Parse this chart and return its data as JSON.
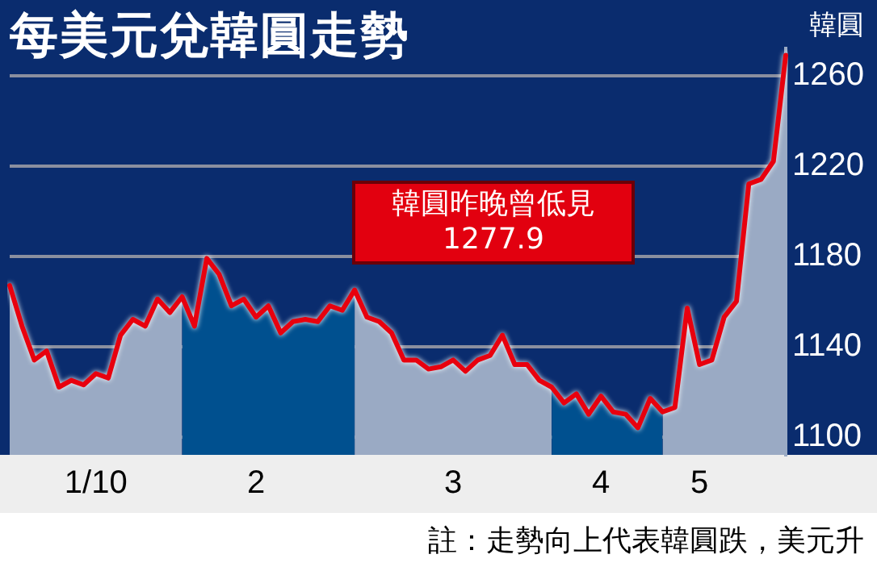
{
  "chart_data": {
    "type": "area",
    "title": "每美元兌韓圓走勢",
    "ylabel": "韓圓",
    "annotations": [
      "韓圓昨晚曾低見\n1277.9",
      "註：走勢向上代表韓圓跌，美元升"
    ],
    "categories": [
      null,
      null,
      null,
      null,
      null,
      null,
      null,
      "1/10",
      null,
      null,
      null,
      null,
      null,
      null,
      null,
      null,
      null,
      null,
      null,
      null,
      "2",
      null,
      null,
      null,
      null,
      null,
      null,
      null,
      null,
      null,
      null,
      null,
      null,
      null,
      null,
      null,
      "3",
      null,
      null,
      null,
      null,
      null,
      null,
      null,
      null,
      null,
      null,
      null,
      "4",
      null,
      null,
      null,
      null,
      null,
      null,
      null,
      "5",
      null,
      null,
      null,
      null,
      null,
      null,
      null
    ],
    "ylim": [
      1092,
      1272
    ],
    "yticks": [
      1100,
      1140,
      1180,
      1220,
      1260
    ],
    "grid": "y",
    "tick_labels": "xy",
    "series": [
      {
        "type": "line",
        "color": "#e8000e",
        "values": [
          1167,
          1149,
          1134,
          1138,
          1122,
          1125,
          1123,
          1128,
          1126,
          1145,
          1152,
          1149,
          1161,
          1155,
          1162,
          1149,
          1179,
          1172,
          1158,
          1161,
          1153,
          1158,
          1146,
          1151,
          1152,
          1151,
          1158,
          1156,
          1165,
          1153,
          1151,
          1146,
          1134,
          1134,
          1130,
          1131,
          1134,
          1129,
          1134,
          1136,
          1145,
          1132,
          1132,
          1125,
          1122,
          1115,
          1119,
          1110,
          1118,
          1111,
          1110,
          1104,
          1117,
          1111,
          1113,
          1157,
          1132,
          1134,
          1153,
          1160,
          1212,
          1214,
          1222,
          1269
        ]
      },
      {
        "color": "#9aaac4",
        "values": [
          1167,
          1149,
          1134,
          1138,
          1122,
          1125,
          1123,
          1128,
          1126,
          1145,
          1152,
          1149,
          1161,
          1155,
          1162,
          null,
          null,
          null,
          null,
          null,
          null,
          null,
          null,
          null,
          null,
          null,
          null,
          null,
          1165,
          1153,
          1151,
          1146,
          1134,
          1134,
          1130,
          1131,
          1134,
          1129,
          1134,
          1136,
          1145,
          1132,
          1132,
          1125,
          1122,
          null,
          null,
          null,
          null,
          null,
          null,
          null,
          null,
          1111,
          1113,
          1157,
          1132,
          1134,
          1153,
          1160,
          1212,
          1214,
          1222,
          1269
        ]
      },
      {
        "color": "#00508f",
        "values": [
          null,
          null,
          null,
          null,
          null,
          null,
          null,
          null,
          null,
          null,
          null,
          null,
          null,
          null,
          1162,
          1149,
          1179,
          1172,
          1158,
          1161,
          1153,
          1158,
          1146,
          1151,
          1152,
          1151,
          1158,
          1156,
          1165,
          null,
          null,
          null,
          null,
          null,
          null,
          null,
          null,
          null,
          null,
          null,
          null,
          null,
          null,
          null,
          1122,
          1115,
          1119,
          1110,
          1118,
          1111,
          1110,
          1104,
          1117,
          1111,
          null,
          null,
          null,
          null,
          null,
          null,
          null,
          null,
          null,
          null
        ]
      }
    ]
  }
}
